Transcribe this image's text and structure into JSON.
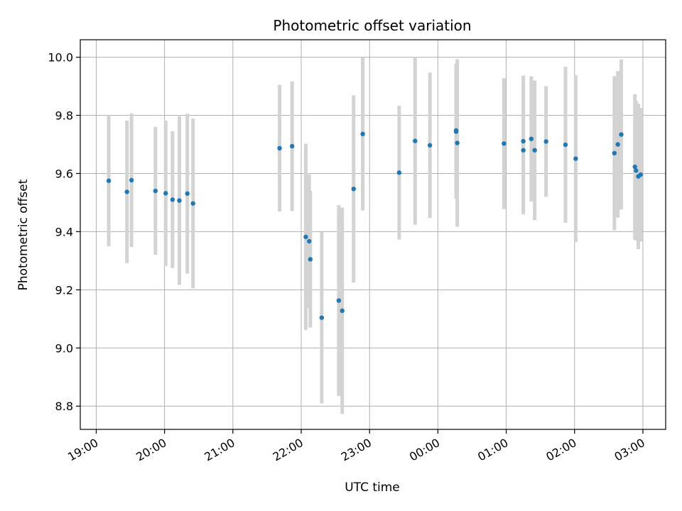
{
  "chart_data": {
    "type": "scatter",
    "title": "Photometric offset variation",
    "xlabel": "UTC time",
    "ylabel": "Photometric offset",
    "x_unit": "UTC",
    "xlim": [
      "2000-01-01T18:46",
      "2000-01-02T03:20"
    ],
    "ylim": [
      8.72,
      10.06
    ],
    "x_ticks": [
      "19:00",
      "20:00",
      "21:00",
      "22:00",
      "23:00",
      "00:00",
      "01:00",
      "02:00",
      "03:00"
    ],
    "x_tick_times": [
      "2000-01-01T19:00",
      "2000-01-01T20:00",
      "2000-01-01T21:00",
      "2000-01-01T22:00",
      "2000-01-01T23:00",
      "2000-01-02T00:00",
      "2000-01-02T01:00",
      "2000-01-02T02:00",
      "2000-01-02T03:00"
    ],
    "y_ticks": [
      8.8,
      9.0,
      9.2,
      9.4,
      9.6,
      9.8,
      10.0
    ],
    "y_tick_labels": [
      "8.8",
      "9.0",
      "9.2",
      "9.4",
      "9.6",
      "9.8",
      "10.0"
    ],
    "grid": true,
    "legend": "none",
    "colors": {
      "point": "#1f77b4",
      "errorbar": "#d3d3d3",
      "grid": "#b0b0b0"
    },
    "points": [
      {
        "t": "2000-01-01T19:11",
        "y": 9.575,
        "err": 0.225
      },
      {
        "t": "2000-01-01T19:27",
        "y": 9.537,
        "err": 0.245
      },
      {
        "t": "2000-01-01T19:31",
        "y": 9.577,
        "err": 0.23
      },
      {
        "t": "2000-01-01T19:52",
        "y": 9.54,
        "err": 0.22
      },
      {
        "t": "2000-01-01T20:01",
        "y": 9.532,
        "err": 0.25
      },
      {
        "t": "2000-01-01T20:07",
        "y": 9.51,
        "err": 0.235
      },
      {
        "t": "2000-01-01T20:13",
        "y": 9.507,
        "err": 0.29
      },
      {
        "t": "2000-01-01T20:20",
        "y": 9.531,
        "err": 0.275
      },
      {
        "t": "2000-01-01T20:25",
        "y": 9.497,
        "err": 0.292
      },
      {
        "t": "2000-01-01T21:41",
        "y": 9.687,
        "err": 0.218
      },
      {
        "t": "2000-01-01T21:52",
        "y": 9.694,
        "err": 0.223
      },
      {
        "t": "2000-01-01T22:04",
        "y": 9.382,
        "err": 0.32
      },
      {
        "t": "2000-01-01T22:07",
        "y": 9.367,
        "err": 0.23
      },
      {
        "t": "2000-01-01T22:08",
        "y": 9.305,
        "err": 0.235
      },
      {
        "t": "2000-01-01T22:18",
        "y": 9.104,
        "err": 0.295
      },
      {
        "t": "2000-01-01T22:33",
        "y": 9.163,
        "err": 0.328
      },
      {
        "t": "2000-01-01T22:36",
        "y": 9.128,
        "err": 0.355
      },
      {
        "t": "2000-01-01T22:46",
        "y": 9.547,
        "err": 0.322
      },
      {
        "t": "2000-01-01T22:54",
        "y": 9.736,
        "err": 0.263
      },
      {
        "t": "2000-01-01T23:26",
        "y": 9.603,
        "err": 0.23
      },
      {
        "t": "2000-01-01T23:40",
        "y": 9.712,
        "err": 0.288
      },
      {
        "t": "2000-01-01T23:53",
        "y": 9.697,
        "err": 0.25
      },
      {
        "t": "2000-01-02T00:16",
        "y": 9.744,
        "err": 0.23
      },
      {
        "t": "2000-01-02T00:16",
        "y": 9.748,
        "err": 0.23
      },
      {
        "t": "2000-01-02T00:17",
        "y": 9.705,
        "err": 0.288
      },
      {
        "t": "2000-01-02T00:58",
        "y": 9.703,
        "err": 0.225
      },
      {
        "t": "2000-01-02T01:15",
        "y": 9.68,
        "err": 0.22
      },
      {
        "t": "2000-01-02T01:15",
        "y": 9.711,
        "err": 0.225
      },
      {
        "t": "2000-01-02T01:22",
        "y": 9.719,
        "err": 0.215
      },
      {
        "t": "2000-01-02T01:25",
        "y": 9.68,
        "err": 0.24
      },
      {
        "t": "2000-01-02T01:35",
        "y": 9.71,
        "err": 0.19
      },
      {
        "t": "2000-01-02T01:52",
        "y": 9.699,
        "err": 0.268
      },
      {
        "t": "2000-01-02T02:01",
        "y": 9.651,
        "err": 0.287
      },
      {
        "t": "2000-01-02T02:35",
        "y": 9.67,
        "err": 0.265
      },
      {
        "t": "2000-01-02T02:38",
        "y": 9.7,
        "err": 0.252
      },
      {
        "t": "2000-01-02T02:41",
        "y": 9.734,
        "err": 0.258
      },
      {
        "t": "2000-01-02T02:53",
        "y": 9.623,
        "err": 0.25
      },
      {
        "t": "2000-01-02T02:54",
        "y": 9.61,
        "err": 0.24
      },
      {
        "t": "2000-01-02T02:56",
        "y": 9.59,
        "err": 0.25
      },
      {
        "t": "2000-01-02T02:58",
        "y": 9.596,
        "err": 0.23
      }
    ]
  }
}
